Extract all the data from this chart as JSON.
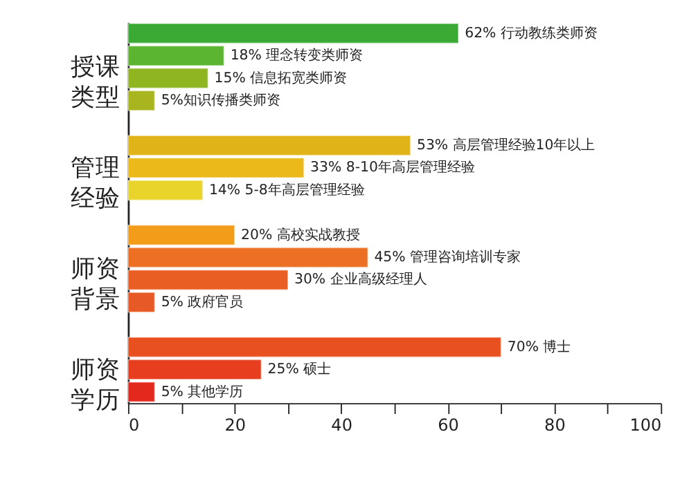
{
  "chart_data": {
    "type": "bar",
    "orientation": "horizontal",
    "categories": [
      null,
      null,
      null,
      null,
      null,
      null,
      null,
      null,
      null,
      null,
      null,
      null,
      null,
      null,
      null,
      null,
      null
    ],
    "values": [
      62,
      18,
      15,
      5,
      null,
      53,
      33,
      14,
      null,
      20,
      45,
      30,
      5,
      null,
      70,
      25,
      5
    ],
    "colors": [
      "#3aaa35",
      "#5cb531",
      "#8fb520",
      "#a8b51e",
      null,
      "#e0b419",
      "#ecb91a",
      "#e8d42a",
      null,
      "#f39c1a",
      "#ec6f23",
      "#e95e22",
      "#e85a25",
      null,
      "#e8501f",
      "#e63e1e",
      "#e3291d"
    ],
    "value_labels": [
      "62% 行动教练类师资",
      "18% 理念转变类师资",
      "15% 信息拓宽类师资",
      "5%知识传播类师资",
      null,
      "53% 高层管理经验10年以上",
      "33% 8-10年高层管理经验",
      "14% 5-8年高层管理经验",
      null,
      "20% 高校实战教授",
      "45% 管理咨询培训专家",
      "30% 企业高级经理人",
      "5% 政府官员",
      null,
      "70% 博士",
      "25% 硕士",
      "5% 其他学历"
    ],
    "annotations": [
      "授课类型",
      "管理经验",
      "师资背景",
      "师资学历"
    ],
    "xlim": [
      0,
      100
    ],
    "xticks": [
      0,
      {
        "value": 10,
        "label": null
      },
      20,
      {
        "value": 30,
        "label": null
      },
      40,
      {
        "value": 50,
        "label": null
      },
      60,
      {
        "value": 70,
        "label": null
      },
      80,
      {
        "value": 90,
        "label": null
      },
      100
    ],
    "tick_labels": "x",
    "grid": false
  }
}
